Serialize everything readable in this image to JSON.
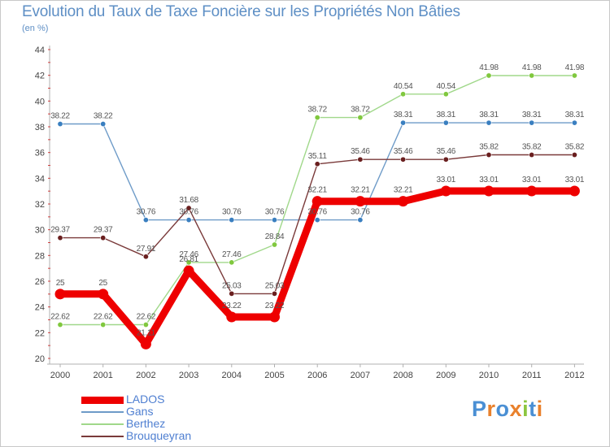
{
  "title": "Evolution du Taux de Taxe Foncière sur les Propriétés Non Bâties",
  "subtitle": "(en %)",
  "logo": {
    "text": "Proxiti",
    "letters": [
      "P",
      "r",
      "o",
      "x",
      "i",
      "t",
      "i"
    ],
    "colors": [
      "#4a8fd4",
      "#e9812c",
      "#4a8fd4",
      "#e9812c",
      "#8cc63f",
      "#4a8fd4",
      "#e9812c"
    ]
  },
  "chart_data": {
    "type": "line",
    "title": "Evolution du Taux de Taxe Foncière sur les Propriétés Non Bâties",
    "ylabel": "(en %)",
    "xlabel": "",
    "ylim": [
      20,
      44
    ],
    "yticks": [
      "20",
      "22",
      "24",
      "26",
      "28",
      "30",
      "32",
      "34",
      "36",
      "38",
      "40",
      "42",
      "44"
    ],
    "categories": [
      "2000",
      "2001",
      "2002",
      "2003",
      "2004",
      "2005",
      "2006",
      "2007",
      "2008",
      "2009",
      "2010",
      "2011",
      "2012"
    ],
    "grid": false,
    "legend": "bottom-left",
    "series": [
      {
        "name": "Gans",
        "color": "#6e9bc8",
        "marker": "#3a7fc0",
        "values": [
          38.22,
          38.22,
          30.76,
          30.76,
          30.76,
          30.76,
          30.76,
          30.76,
          38.31,
          38.31,
          38.31,
          38.31,
          38.31
        ],
        "labels": [
          "38.22",
          "38.22",
          "30.76",
          "30.76",
          "30.76",
          "30.76",
          "30.76",
          "30.76",
          "38.31",
          "38.31",
          "38.31",
          "38.31",
          "38.31"
        ]
      },
      {
        "name": "Berthez",
        "color": "#a0d88a",
        "marker": "#80c83e",
        "values": [
          22.62,
          22.62,
          22.62,
          27.46,
          27.46,
          28.84,
          38.72,
          38.72,
          40.54,
          40.54,
          41.98,
          41.98,
          41.98
        ],
        "labels": [
          "22.62",
          "22.62",
          "22.62",
          "27.46",
          "27.46",
          "28.84",
          "38.72",
          "38.72",
          "40.54",
          "40.54",
          "41.98",
          "41.98",
          "41.98"
        ]
      },
      {
        "name": "Brouqueyran",
        "color": "#7a3a3a",
        "marker": "#6a1f1f",
        "values": [
          29.37,
          29.37,
          27.91,
          31.68,
          25.03,
          25.03,
          35.11,
          35.46,
          35.46,
          35.46,
          35.82,
          35.82,
          35.82
        ],
        "labels": [
          "29.37",
          "29.37",
          "27.91",
          "31.68",
          "25.03",
          "25.03",
          "35.11",
          "35.46",
          "35.46",
          "35.46",
          "35.82",
          "35.82",
          "35.82"
        ]
      },
      {
        "name": "LADOS",
        "color": "#ee0000",
        "marker": "#ee0000",
        "values": [
          25,
          25,
          21.11,
          26.81,
          23.22,
          23.22,
          32.21,
          32.21,
          32.21,
          33.01,
          33.01,
          33.01,
          33.01
        ],
        "labels": [
          "25",
          "25",
          "21.11",
          "26.81",
          "23.22",
          "23.22",
          "32.21",
          "32.21",
          "32.21",
          "33.01",
          "33.01",
          "33.01",
          "33.01"
        ]
      }
    ],
    "legend_order": [
      "LADOS",
      "Gans",
      "Berthez",
      "Brouqueyran"
    ]
  }
}
